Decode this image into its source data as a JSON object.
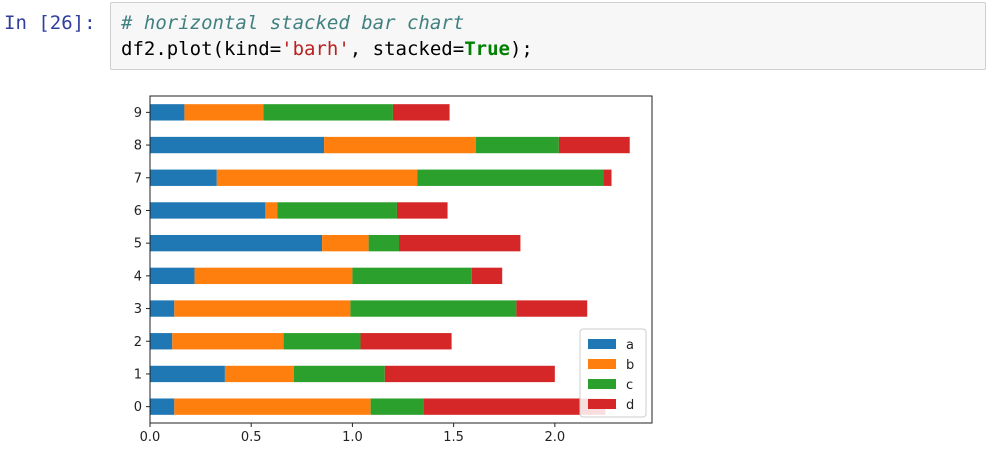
{
  "cell": {
    "prompt": "In [26]:",
    "comment": "# horizontal stacked bar chart",
    "code_prefix": "df2.plot(kind=",
    "code_string": "'barh'",
    "code_middle": ", stacked=",
    "code_keyword": "True",
    "code_suffix": ");"
  },
  "chart_data": {
    "type": "bar",
    "orientation": "horizontal",
    "stacked": true,
    "categories": [
      "0",
      "1",
      "2",
      "3",
      "4",
      "5",
      "6",
      "7",
      "8",
      "9"
    ],
    "series": [
      {
        "name": "a",
        "color": "#1f77b4",
        "values": [
          0.12,
          0.37,
          0.11,
          0.12,
          0.22,
          0.85,
          0.57,
          0.33,
          0.86,
          0.17
        ]
      },
      {
        "name": "b",
        "color": "#ff7f0e",
        "values": [
          0.97,
          0.34,
          0.55,
          0.87,
          0.78,
          0.23,
          0.06,
          0.99,
          0.75,
          0.39
        ]
      },
      {
        "name": "c",
        "color": "#2ca02c",
        "values": [
          0.26,
          0.45,
          0.38,
          0.82,
          0.59,
          0.15,
          0.59,
          0.92,
          0.41,
          0.64
        ]
      },
      {
        "name": "d",
        "color": "#d62728",
        "values": [
          0.9,
          0.84,
          0.45,
          0.35,
          0.15,
          0.6,
          0.25,
          0.04,
          0.35,
          0.28
        ]
      }
    ],
    "xticks": [
      "0.0",
      "0.5",
      "1.0",
      "1.5",
      "2.0"
    ],
    "xlim": [
      0,
      2.48
    ],
    "legend": "lower-right",
    "grid": false
  }
}
